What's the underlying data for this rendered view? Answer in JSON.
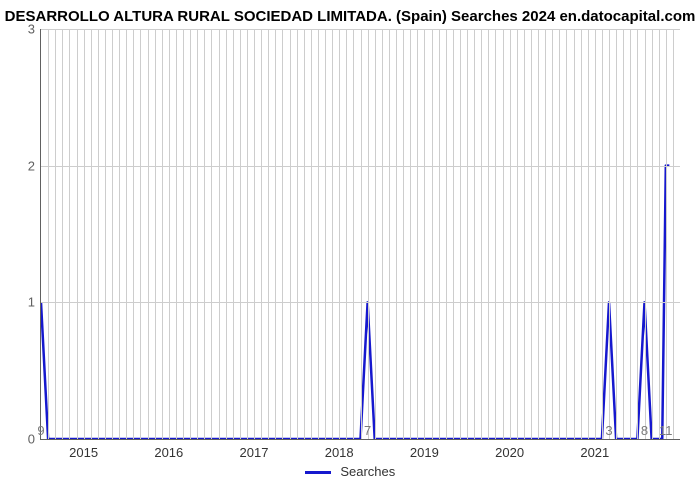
{
  "chart": {
    "type": "line",
    "title": "DESARROLLO ALTURA RURAL SOCIEDAD LIMITADA. (Spain) Searches 2024 en.datocapital.com",
    "title_fontsize": 15,
    "title_color": "#000000",
    "background_color": "#ffffff",
    "grid_color": "#cdcdcd",
    "axis_color": "#606060",
    "xlim": [
      0,
      90
    ],
    "ylim": [
      0,
      3
    ],
    "y_ticks": [
      0,
      1,
      2,
      3
    ],
    "y_tick_labels": [
      "0",
      "1",
      "2",
      "3"
    ],
    "y_tick_color": "#606060",
    "x_ticks_major": [
      6,
      18,
      30,
      42,
      54,
      66,
      78
    ],
    "x_tick_labels": [
      "2015",
      "2016",
      "2017",
      "2018",
      "2019",
      "2020",
      "2021"
    ],
    "x_tick_color": "#333333",
    "secondary_labels": [
      {
        "x": 0,
        "text": "9"
      },
      {
        "x": 46,
        "text": "7"
      },
      {
        "x": 80,
        "text": "3"
      },
      {
        "x": 85,
        "text": "8"
      },
      {
        "x": 88,
        "text": "11"
      }
    ],
    "secondary_label_color": "#7a7a7a",
    "line_color": "#1618ce",
    "line_width": 2.5,
    "series": [
      {
        "x": 0,
        "y": 1
      },
      {
        "x": 1,
        "y": 0
      },
      {
        "x": 45,
        "y": 0
      },
      {
        "x": 46,
        "y": 1
      },
      {
        "x": 47,
        "y": 0
      },
      {
        "x": 79,
        "y": 0
      },
      {
        "x": 80,
        "y": 1
      },
      {
        "x": 81,
        "y": 0
      },
      {
        "x": 84,
        "y": 0
      },
      {
        "x": 85,
        "y": 1
      },
      {
        "x": 86,
        "y": 0
      },
      {
        "x": 87.5,
        "y": 0
      },
      {
        "x": 88,
        "y": 2
      },
      {
        "x": 88.5,
        "y": 2
      }
    ],
    "legend": {
      "label": "Searches",
      "swatch_color": "#1618ce"
    }
  }
}
